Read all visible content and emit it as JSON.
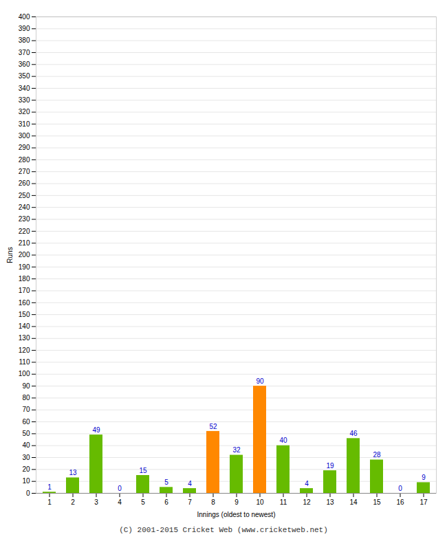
{
  "chart_data": {
    "type": "bar",
    "xlabel": "Innings (oldest to newest)",
    "ylabel": "Runs",
    "categories": [
      1,
      2,
      3,
      4,
      5,
      6,
      7,
      8,
      9,
      10,
      11,
      12,
      13,
      14,
      15,
      16,
      17
    ],
    "values": [
      1,
      13,
      49,
      0,
      15,
      5,
      4,
      52,
      32,
      90,
      40,
      4,
      19,
      46,
      28,
      0,
      9
    ],
    "colors": [
      "#66bb00",
      "#66bb00",
      "#66bb00",
      "#66bb00",
      "#66bb00",
      "#66bb00",
      "#66bb00",
      "#ff8800",
      "#66bb00",
      "#ff8800",
      "#66bb00",
      "#66bb00",
      "#66bb00",
      "#66bb00",
      "#66bb00",
      "#66bb00",
      "#66bb00"
    ],
    "ylim": [
      0,
      400
    ],
    "yticks": [
      0,
      10,
      20,
      30,
      40,
      50,
      60,
      70,
      80,
      90,
      100,
      110,
      120,
      130,
      140,
      150,
      160,
      170,
      180,
      190,
      200,
      210,
      220,
      230,
      240,
      250,
      260,
      270,
      280,
      290,
      300,
      310,
      320,
      330,
      340,
      350,
      360,
      370,
      380,
      390,
      400
    ],
    "grid": true,
    "data_labels": true,
    "caption": "(C) 2001-2015 Cricket Web (www.cricketweb.net)"
  }
}
